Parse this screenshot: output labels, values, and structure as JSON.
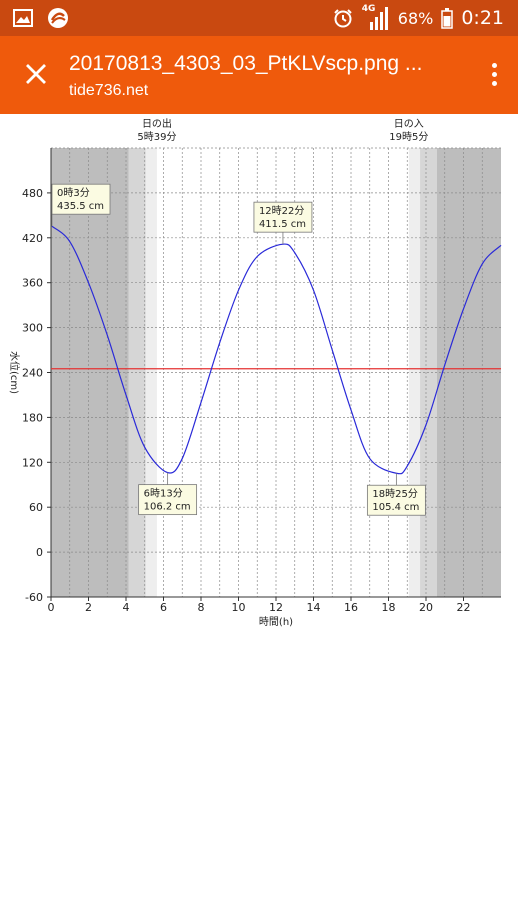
{
  "status_bar": {
    "battery": "68%",
    "time": "0:21",
    "network": "4G",
    "icons": [
      "image-icon",
      "app-icon",
      "alarm-icon",
      "signal-icon",
      "battery-icon"
    ]
  },
  "app_bar": {
    "title": "20170813_4303_03_PtKLVscp.png ...",
    "subtitle": "tide736.net",
    "background_color": "#ef5a0c"
  },
  "chart_data": {
    "type": "line",
    "xlabel": "時間(h)",
    "ylabel": "水位(cm)",
    "xlim": [
      0,
      24
    ],
    "ylim": [
      -60,
      540
    ],
    "x_ticks": [
      "0",
      "2",
      "4",
      "6",
      "8",
      "10",
      "12",
      "14",
      "16",
      "18",
      "20",
      "22"
    ],
    "y_ticks": [
      "-60",
      "0",
      "60",
      "120",
      "180",
      "240",
      "300",
      "360",
      "420",
      "480"
    ],
    "reference_line": {
      "value": 245,
      "color": "#e53333"
    },
    "sunrise": {
      "label": "日の出",
      "time_label": "5時39分",
      "hour": 5.65
    },
    "sunset": {
      "label": "日の入",
      "time_label": "19時5分",
      "hour": 19.083
    },
    "series": [
      {
        "color": "#2a2ad8",
        "x": [
          0.05,
          1,
          2,
          3,
          4,
          5,
          6.22,
          7,
          8,
          9,
          10,
          11,
          12.37,
          13,
          14,
          15,
          16,
          17,
          18.42,
          19,
          20,
          21,
          22,
          23,
          24
        ],
        "values": [
          435.5,
          415,
          360,
          290,
          210,
          140,
          106.2,
          125,
          200,
          280,
          350,
          395,
          411.5,
          400,
          350,
          270,
          190,
          125,
          105.4,
          115,
          170,
          250,
          325,
          385,
          410
        ]
      }
    ],
    "annotations": [
      {
        "time": "0時3分",
        "value": "435.5 cm",
        "x": 0.05,
        "y": 435.5,
        "pos": "above"
      },
      {
        "time": "6時13分",
        "value": "106.2 cm",
        "x": 6.22,
        "y": 106.2,
        "pos": "below"
      },
      {
        "time": "12時22分",
        "value": "411.5 cm",
        "x": 12.37,
        "y": 411.5,
        "pos": "above"
      },
      {
        "time": "18時25分",
        "value": "105.4 cm",
        "x": 18.42,
        "y": 105.4,
        "pos": "below"
      }
    ]
  }
}
